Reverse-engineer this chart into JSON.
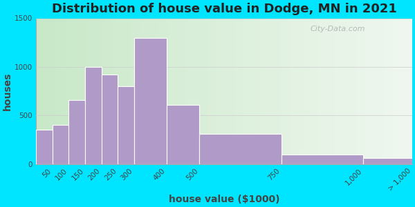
{
  "title": "Distribution of house value in Dodge, MN in 2021",
  "xlabel": "house value ($1000)",
  "ylabel": "houses",
  "bar_color": "#b09ac8",
  "bar_edge_color": "#ffffff",
  "background_outer": "#00e5ff",
  "ylim": [
    0,
    1500
  ],
  "yticks": [
    0,
    500,
    1000,
    1500
  ],
  "values": [
    350,
    400,
    660,
    1000,
    920,
    800,
    1300,
    610,
    310,
    100,
    60
  ],
  "bin_edges": [
    0,
    50,
    100,
    150,
    200,
    250,
    300,
    400,
    500,
    750,
    1000,
    1150
  ],
  "tick_positions": [
    50,
    100,
    150,
    200,
    250,
    300,
    400,
    500,
    750,
    1000,
    1150
  ],
  "tick_labels": [
    "50",
    "100",
    "150",
    "200",
    "250",
    "300",
    "400",
    "500",
    "750",
    "1,000",
    "> 1,000"
  ],
  "title_fontsize": 13,
  "axis_label_fontsize": 10,
  "tick_fontsize": 7.5,
  "watermark_text": "City-Data.com"
}
